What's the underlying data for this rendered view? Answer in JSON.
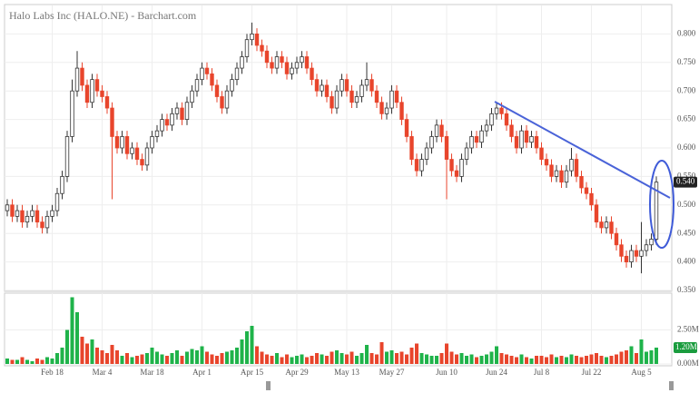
{
  "chart_data": {
    "type": "candlestick",
    "title": "Halo Labs Inc (HALO.NE) - Barchart.com",
    "categories": [
      null,
      null,
      null,
      null,
      null,
      null,
      null,
      null,
      null,
      "Feb 18",
      null,
      null,
      null,
      null,
      null,
      null,
      null,
      null,
      null,
      "Mar 4",
      null,
      null,
      null,
      null,
      null,
      null,
      null,
      null,
      null,
      "Mar 18",
      null,
      null,
      null,
      null,
      null,
      null,
      null,
      null,
      null,
      "Apr 1",
      null,
      null,
      null,
      null,
      null,
      null,
      null,
      null,
      null,
      "Apr 15",
      null,
      null,
      null,
      null,
      null,
      null,
      null,
      null,
      "Apr 29",
      null,
      null,
      null,
      null,
      null,
      null,
      null,
      null,
      null,
      "May 13",
      null,
      null,
      null,
      null,
      null,
      null,
      null,
      null,
      "May 27",
      null,
      null,
      null,
      null,
      null,
      null,
      null,
      null,
      null,
      null,
      "Jun 10",
      null,
      null,
      null,
      null,
      null,
      null,
      null,
      null,
      null,
      "Jun 24",
      null,
      null,
      null,
      null,
      null,
      null,
      null,
      null,
      "Jul 8",
      null,
      null,
      null,
      null,
      null,
      null,
      null,
      null,
      null,
      "Jul 22",
      null,
      null,
      null,
      null,
      null,
      null,
      null,
      null,
      null,
      "Aug 5",
      null,
      null,
      null
    ],
    "open": [
      0.49,
      0.5,
      0.48,
      0.49,
      0.47,
      0.48,
      0.49,
      0.47,
      0.46,
      0.48,
      0.49,
      0.52,
      0.55,
      0.62,
      0.7,
      0.74,
      0.71,
      0.68,
      0.72,
      0.7,
      0.69,
      0.67,
      0.62,
      0.6,
      0.62,
      0.59,
      0.6,
      0.58,
      0.57,
      0.6,
      0.62,
      0.63,
      0.65,
      0.64,
      0.66,
      0.67,
      0.65,
      0.68,
      0.7,
      0.72,
      0.74,
      0.73,
      0.71,
      0.69,
      0.67,
      0.7,
      0.72,
      0.74,
      0.76,
      0.79,
      0.8,
      0.78,
      0.77,
      0.75,
      0.74,
      0.76,
      0.75,
      0.73,
      0.74,
      0.75,
      0.76,
      0.74,
      0.72,
      0.7,
      0.71,
      0.69,
      0.67,
      0.7,
      0.72,
      0.7,
      0.68,
      0.69,
      0.71,
      0.72,
      0.7,
      0.68,
      0.66,
      0.67,
      0.7,
      0.68,
      0.65,
      0.62,
      0.58,
      0.56,
      0.58,
      0.6,
      0.62,
      0.64,
      0.62,
      0.58,
      0.56,
      0.55,
      0.58,
      0.6,
      0.62,
      0.61,
      0.63,
      0.64,
      0.66,
      0.67,
      0.66,
      0.64,
      0.62,
      0.6,
      0.63,
      0.61,
      0.62,
      0.6,
      0.58,
      0.57,
      0.55,
      0.56,
      0.54,
      0.56,
      0.58,
      0.55,
      0.53,
      0.52,
      0.5,
      0.47,
      0.46,
      0.47,
      0.45,
      0.43,
      0.41,
      0.4,
      0.42,
      0.41,
      0.42,
      0.43,
      0.44
    ],
    "high": [
      0.51,
      0.51,
      0.5,
      0.5,
      0.49,
      0.5,
      0.5,
      0.48,
      0.49,
      0.5,
      0.53,
      0.56,
      0.63,
      0.72,
      0.77,
      0.75,
      0.72,
      0.73,
      0.73,
      0.71,
      0.7,
      0.68,
      0.63,
      0.63,
      0.63,
      0.61,
      0.61,
      0.59,
      0.61,
      0.63,
      0.64,
      0.66,
      0.66,
      0.67,
      0.68,
      0.68,
      0.69,
      0.71,
      0.73,
      0.75,
      0.75,
      0.74,
      0.72,
      0.7,
      0.71,
      0.73,
      0.75,
      0.77,
      0.8,
      0.82,
      0.81,
      0.79,
      0.78,
      0.76,
      0.77,
      0.77,
      0.76,
      0.75,
      0.76,
      0.77,
      0.77,
      0.75,
      0.73,
      0.72,
      0.72,
      0.7,
      0.71,
      0.73,
      0.73,
      0.71,
      0.7,
      0.72,
      0.75,
      0.73,
      0.71,
      0.69,
      0.68,
      0.71,
      0.71,
      0.69,
      0.66,
      0.63,
      0.59,
      0.59,
      0.61,
      0.63,
      0.65,
      0.65,
      0.63,
      0.59,
      0.57,
      0.59,
      0.61,
      0.63,
      0.63,
      0.64,
      0.65,
      0.67,
      0.68,
      0.68,
      0.67,
      0.65,
      0.63,
      0.64,
      0.64,
      0.63,
      0.63,
      0.61,
      0.59,
      0.58,
      0.57,
      0.57,
      0.57,
      0.6,
      0.59,
      0.56,
      0.54,
      0.53,
      0.51,
      0.48,
      0.48,
      0.48,
      0.46,
      0.44,
      0.42,
      0.43,
      0.43,
      0.47,
      0.44,
      0.45,
      0.55
    ],
    "low": [
      0.48,
      0.47,
      0.47,
      0.46,
      0.46,
      0.47,
      0.46,
      0.45,
      0.45,
      0.47,
      0.48,
      0.51,
      0.54,
      0.61,
      0.69,
      0.7,
      0.67,
      0.67,
      0.69,
      0.68,
      0.66,
      0.51,
      0.59,
      0.59,
      0.58,
      0.58,
      0.57,
      0.56,
      0.56,
      0.59,
      0.61,
      0.62,
      0.63,
      0.63,
      0.65,
      0.64,
      0.64,
      0.67,
      0.69,
      0.71,
      0.72,
      0.7,
      0.68,
      0.66,
      0.66,
      0.69,
      0.71,
      0.73,
      0.75,
      0.78,
      0.77,
      0.76,
      0.74,
      0.73,
      0.73,
      0.74,
      0.72,
      0.72,
      0.73,
      0.74,
      0.73,
      0.71,
      0.69,
      0.69,
      0.68,
      0.66,
      0.66,
      0.69,
      0.69,
      0.67,
      0.67,
      0.68,
      0.7,
      0.69,
      0.67,
      0.65,
      0.65,
      0.66,
      0.67,
      0.64,
      0.61,
      0.57,
      0.55,
      0.55,
      0.57,
      0.59,
      0.61,
      0.61,
      0.51,
      0.55,
      0.54,
      0.54,
      0.57,
      0.59,
      0.6,
      0.6,
      0.62,
      0.63,
      0.65,
      0.65,
      0.63,
      0.61,
      0.59,
      0.59,
      0.6,
      0.6,
      0.59,
      0.57,
      0.56,
      0.54,
      0.54,
      0.53,
      0.53,
      0.55,
      0.54,
      0.52,
      0.51,
      0.49,
      0.46,
      0.45,
      0.45,
      0.44,
      0.42,
      0.4,
      0.39,
      0.39,
      0.4,
      0.38,
      0.41,
      0.42,
      0.43
    ],
    "close": [
      0.5,
      0.48,
      0.49,
      0.47,
      0.48,
      0.49,
      0.47,
      0.46,
      0.48,
      0.49,
      0.52,
      0.55,
      0.62,
      0.7,
      0.74,
      0.71,
      0.68,
      0.72,
      0.7,
      0.69,
      0.67,
      0.62,
      0.6,
      0.62,
      0.59,
      0.6,
      0.58,
      0.57,
      0.6,
      0.62,
      0.63,
      0.65,
      0.64,
      0.66,
      0.67,
      0.65,
      0.68,
      0.7,
      0.72,
      0.74,
      0.73,
      0.71,
      0.69,
      0.67,
      0.7,
      0.72,
      0.74,
      0.76,
      0.79,
      0.8,
      0.78,
      0.77,
      0.75,
      0.74,
      0.76,
      0.75,
      0.73,
      0.74,
      0.75,
      0.76,
      0.74,
      0.72,
      0.7,
      0.71,
      0.69,
      0.67,
      0.7,
      0.72,
      0.7,
      0.68,
      0.69,
      0.71,
      0.72,
      0.7,
      0.68,
      0.66,
      0.67,
      0.7,
      0.68,
      0.65,
      0.62,
      0.58,
      0.56,
      0.58,
      0.6,
      0.62,
      0.64,
      0.62,
      0.58,
      0.56,
      0.55,
      0.58,
      0.6,
      0.62,
      0.61,
      0.63,
      0.64,
      0.66,
      0.67,
      0.66,
      0.64,
      0.62,
      0.6,
      0.63,
      0.61,
      0.62,
      0.6,
      0.58,
      0.57,
      0.55,
      0.56,
      0.54,
      0.56,
      0.58,
      0.55,
      0.53,
      0.52,
      0.5,
      0.47,
      0.46,
      0.47,
      0.45,
      0.43,
      0.41,
      0.4,
      0.42,
      0.41,
      0.42,
      0.43,
      0.44,
      0.54
    ],
    "volume": [
      0.4,
      0.3,
      0.3,
      0.5,
      0.3,
      0.2,
      0.4,
      0.3,
      0.5,
      0.4,
      0.8,
      1.2,
      2.5,
      4.9,
      3.8,
      2.0,
      1.5,
      1.8,
      1.2,
      1.0,
      0.8,
      1.4,
      1.0,
      0.6,
      0.8,
      0.5,
      0.6,
      0.7,
      0.8,
      1.2,
      0.9,
      0.7,
      0.6,
      0.8,
      1.0,
      0.6,
      0.9,
      1.1,
      1.0,
      1.3,
      0.9,
      0.7,
      0.6,
      0.8,
      0.9,
      1.0,
      1.2,
      1.8,
      2.4,
      2.8,
      1.3,
      0.9,
      0.7,
      0.6,
      0.8,
      0.5,
      0.7,
      0.5,
      0.6,
      0.7,
      0.5,
      0.6,
      0.8,
      0.7,
      0.6,
      0.9,
      1.0,
      0.8,
      0.7,
      0.9,
      0.6,
      0.8,
      1.4,
      0.8,
      0.7,
      1.6,
      0.9,
      1.0,
      0.8,
      0.9,
      0.7,
      1.2,
      1.5,
      0.8,
      0.7,
      0.6,
      0.6,
      0.8,
      1.5,
      0.9,
      0.7,
      0.8,
      0.6,
      0.7,
      0.5,
      0.6,
      0.7,
      0.9,
      1.3,
      0.8,
      0.7,
      0.6,
      0.5,
      0.7,
      0.5,
      0.4,
      0.6,
      0.6,
      0.5,
      0.7,
      0.5,
      0.6,
      0.5,
      0.7,
      0.6,
      0.5,
      0.6,
      0.7,
      0.8,
      0.6,
      0.5,
      0.6,
      0.7,
      0.9,
      1.0,
      1.3,
      0.8,
      1.8,
      0.9,
      1.0,
      1.2
    ],
    "up_color": "#ffffff",
    "down_color": "#e8452c",
    "volume_up_color": "#1fb34a",
    "volume_down_color": "#e8452c",
    "ylim": [
      0.35,
      0.85
    ],
    "yticks": [
      {
        "value": 0.35,
        "label": "0.350"
      },
      {
        "value": 0.4,
        "label": "0.400"
      },
      {
        "value": 0.45,
        "label": "0.450"
      },
      {
        "value": 0.5,
        "label": "0.500"
      },
      {
        "value": 0.55,
        "label": "0.550"
      },
      {
        "value": 0.6,
        "label": "0.600"
      },
      {
        "value": 0.65,
        "label": "0.650"
      },
      {
        "value": 0.7,
        "label": "0.700"
      },
      {
        "value": 0.75,
        "label": "0.750"
      },
      {
        "value": 0.8,
        "label": "0.800"
      }
    ],
    "volume_ylim": [
      0,
      5.2
    ],
    "volume_yticks": [
      {
        "value": 0,
        "label": "0.00M"
      },
      {
        "value": 2.5,
        "label": "2.50M"
      }
    ],
    "last_close_label": "0.540",
    "last_volume_label": "1.20M",
    "grid": true
  }
}
